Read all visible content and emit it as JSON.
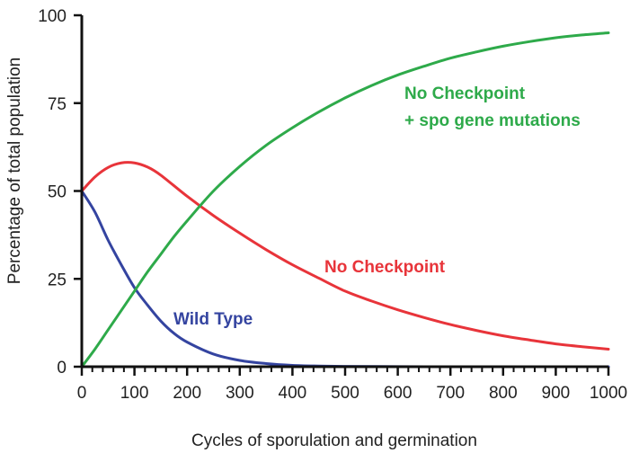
{
  "chart_data": {
    "type": "line",
    "title": "",
    "xlabel": "Cycles of sporulation and germination",
    "ylabel": "Percentage of total population",
    "xlim": [
      0,
      1000
    ],
    "ylim": [
      0,
      100
    ],
    "x_ticks": [
      0,
      100,
      200,
      300,
      400,
      500,
      600,
      700,
      800,
      900,
      1000
    ],
    "y_ticks": [
      0,
      25,
      50,
      75,
      100
    ],
    "x_tick_labels": [
      "0",
      "100",
      "200",
      "300",
      "400",
      "500",
      "600",
      "700",
      "800",
      "900",
      "1000"
    ],
    "y_tick_labels": [
      "0",
      "25",
      "50",
      "75",
      "100"
    ],
    "grid": false,
    "series": [
      {
        "name": "Wild Type",
        "color": "#3444a0",
        "x": [
          0,
          25,
          50,
          75,
          100,
          125,
          150,
          175,
          200,
          250,
          300,
          350,
          400,
          450,
          500,
          600,
          700,
          800,
          900,
          1000
        ],
        "values": [
          50,
          44,
          36,
          29,
          22.5,
          17.5,
          13,
          9.5,
          7,
          3.6,
          1.8,
          0.9,
          0.4,
          0.2,
          0.1,
          0.03,
          0.01,
          0,
          0,
          0
        ]
      },
      {
        "name": "No Checkpoint",
        "color": "#e8343a",
        "x": [
          0,
          25,
          50,
          75,
          100,
          125,
          150,
          200,
          250,
          300,
          350,
          400,
          450,
          500,
          550,
          600,
          650,
          700,
          750,
          800,
          850,
          900,
          950,
          1000
        ],
        "values": [
          50,
          54,
          56.7,
          58,
          58,
          56.8,
          54.5,
          48.5,
          43,
          38,
          33.3,
          29,
          25.2,
          21.5,
          18.7,
          16.2,
          14,
          12,
          10.3,
          8.8,
          7.6,
          6.5,
          5.7,
          5
        ]
      },
      {
        "name": "No Checkpoint\n+ spo gene mutations",
        "color": "#2eaa4a",
        "x": [
          0,
          25,
          50,
          75,
          100,
          125,
          150,
          175,
          200,
          250,
          300,
          350,
          400,
          450,
          500,
          550,
          600,
          650,
          700,
          750,
          800,
          850,
          900,
          950,
          1000
        ],
        "values": [
          0,
          5,
          10.5,
          16,
          21.5,
          27,
          32,
          37,
          41.5,
          50,
          57,
          63,
          68,
          72.5,
          76.5,
          80,
          83,
          85.5,
          87.8,
          89.6,
          91.2,
          92.5,
          93.6,
          94.4,
          95
        ]
      }
    ],
    "annotations": {
      "wild_type": "Wild Type",
      "no_checkpoint": "No Checkpoint",
      "spo_line1": "No Checkpoint",
      "spo_line2": "+ spo gene mutations"
    },
    "axis_color": "#111111"
  }
}
